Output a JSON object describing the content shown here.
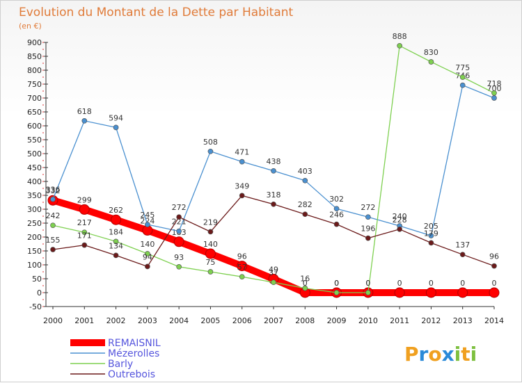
{
  "chart_data": {
    "type": "line",
    "title": "Evolution du Montant de la Dette par Habitant",
    "unit_label": "(en €)",
    "x": [
      "2000",
      "2001",
      "2002",
      "2003",
      "2004",
      "2005",
      "2006",
      "2007",
      "2008",
      "2009",
      "2010",
      "2011",
      "2012",
      "2013",
      "2014"
    ],
    "yticks": [
      -50,
      0,
      50,
      100,
      150,
      200,
      250,
      300,
      350,
      400,
      450,
      500,
      550,
      600,
      650,
      700,
      750,
      800,
      850,
      900
    ],
    "ylim": [
      -50,
      900
    ],
    "grid": false,
    "legend_position": "bottom-left",
    "series": [
      {
        "name": "REMAISNIL",
        "color": "#ff0000",
        "values": [
          332,
          299,
          262,
          224,
          183,
          140,
          96,
          49,
          0,
          0,
          0,
          0,
          0,
          0,
          0
        ]
      },
      {
        "name": "Mézerolles",
        "color": "#4a90d0",
        "values": [
          336,
          618,
          594,
          245,
          221,
          508,
          471,
          438,
          403,
          302,
          272,
          240,
          205,
          746,
          700
        ]
      },
      {
        "name": "Barly",
        "color": "#7ed050",
        "values": [
          242,
          217,
          184,
          140,
          93,
          75,
          57,
          37,
          16,
          0,
          0,
          888,
          830,
          775,
          718
        ]
      },
      {
        "name": "Outrebois",
        "color": "#6b1a1a",
        "values": [
          155,
          171,
          134,
          94,
          272,
          219,
          349,
          318,
          282,
          246,
          196,
          228,
          179,
          137,
          96
        ]
      }
    ]
  },
  "brand": {
    "letters": [
      "P",
      "r",
      "o",
      "x",
      "i",
      "t",
      "i"
    ],
    "colors": [
      "#f0a020",
      "#2a8ad8",
      "#f0a020",
      "#2a8ad8",
      "#7ec040",
      "#f0a020",
      "#7ec040"
    ]
  }
}
